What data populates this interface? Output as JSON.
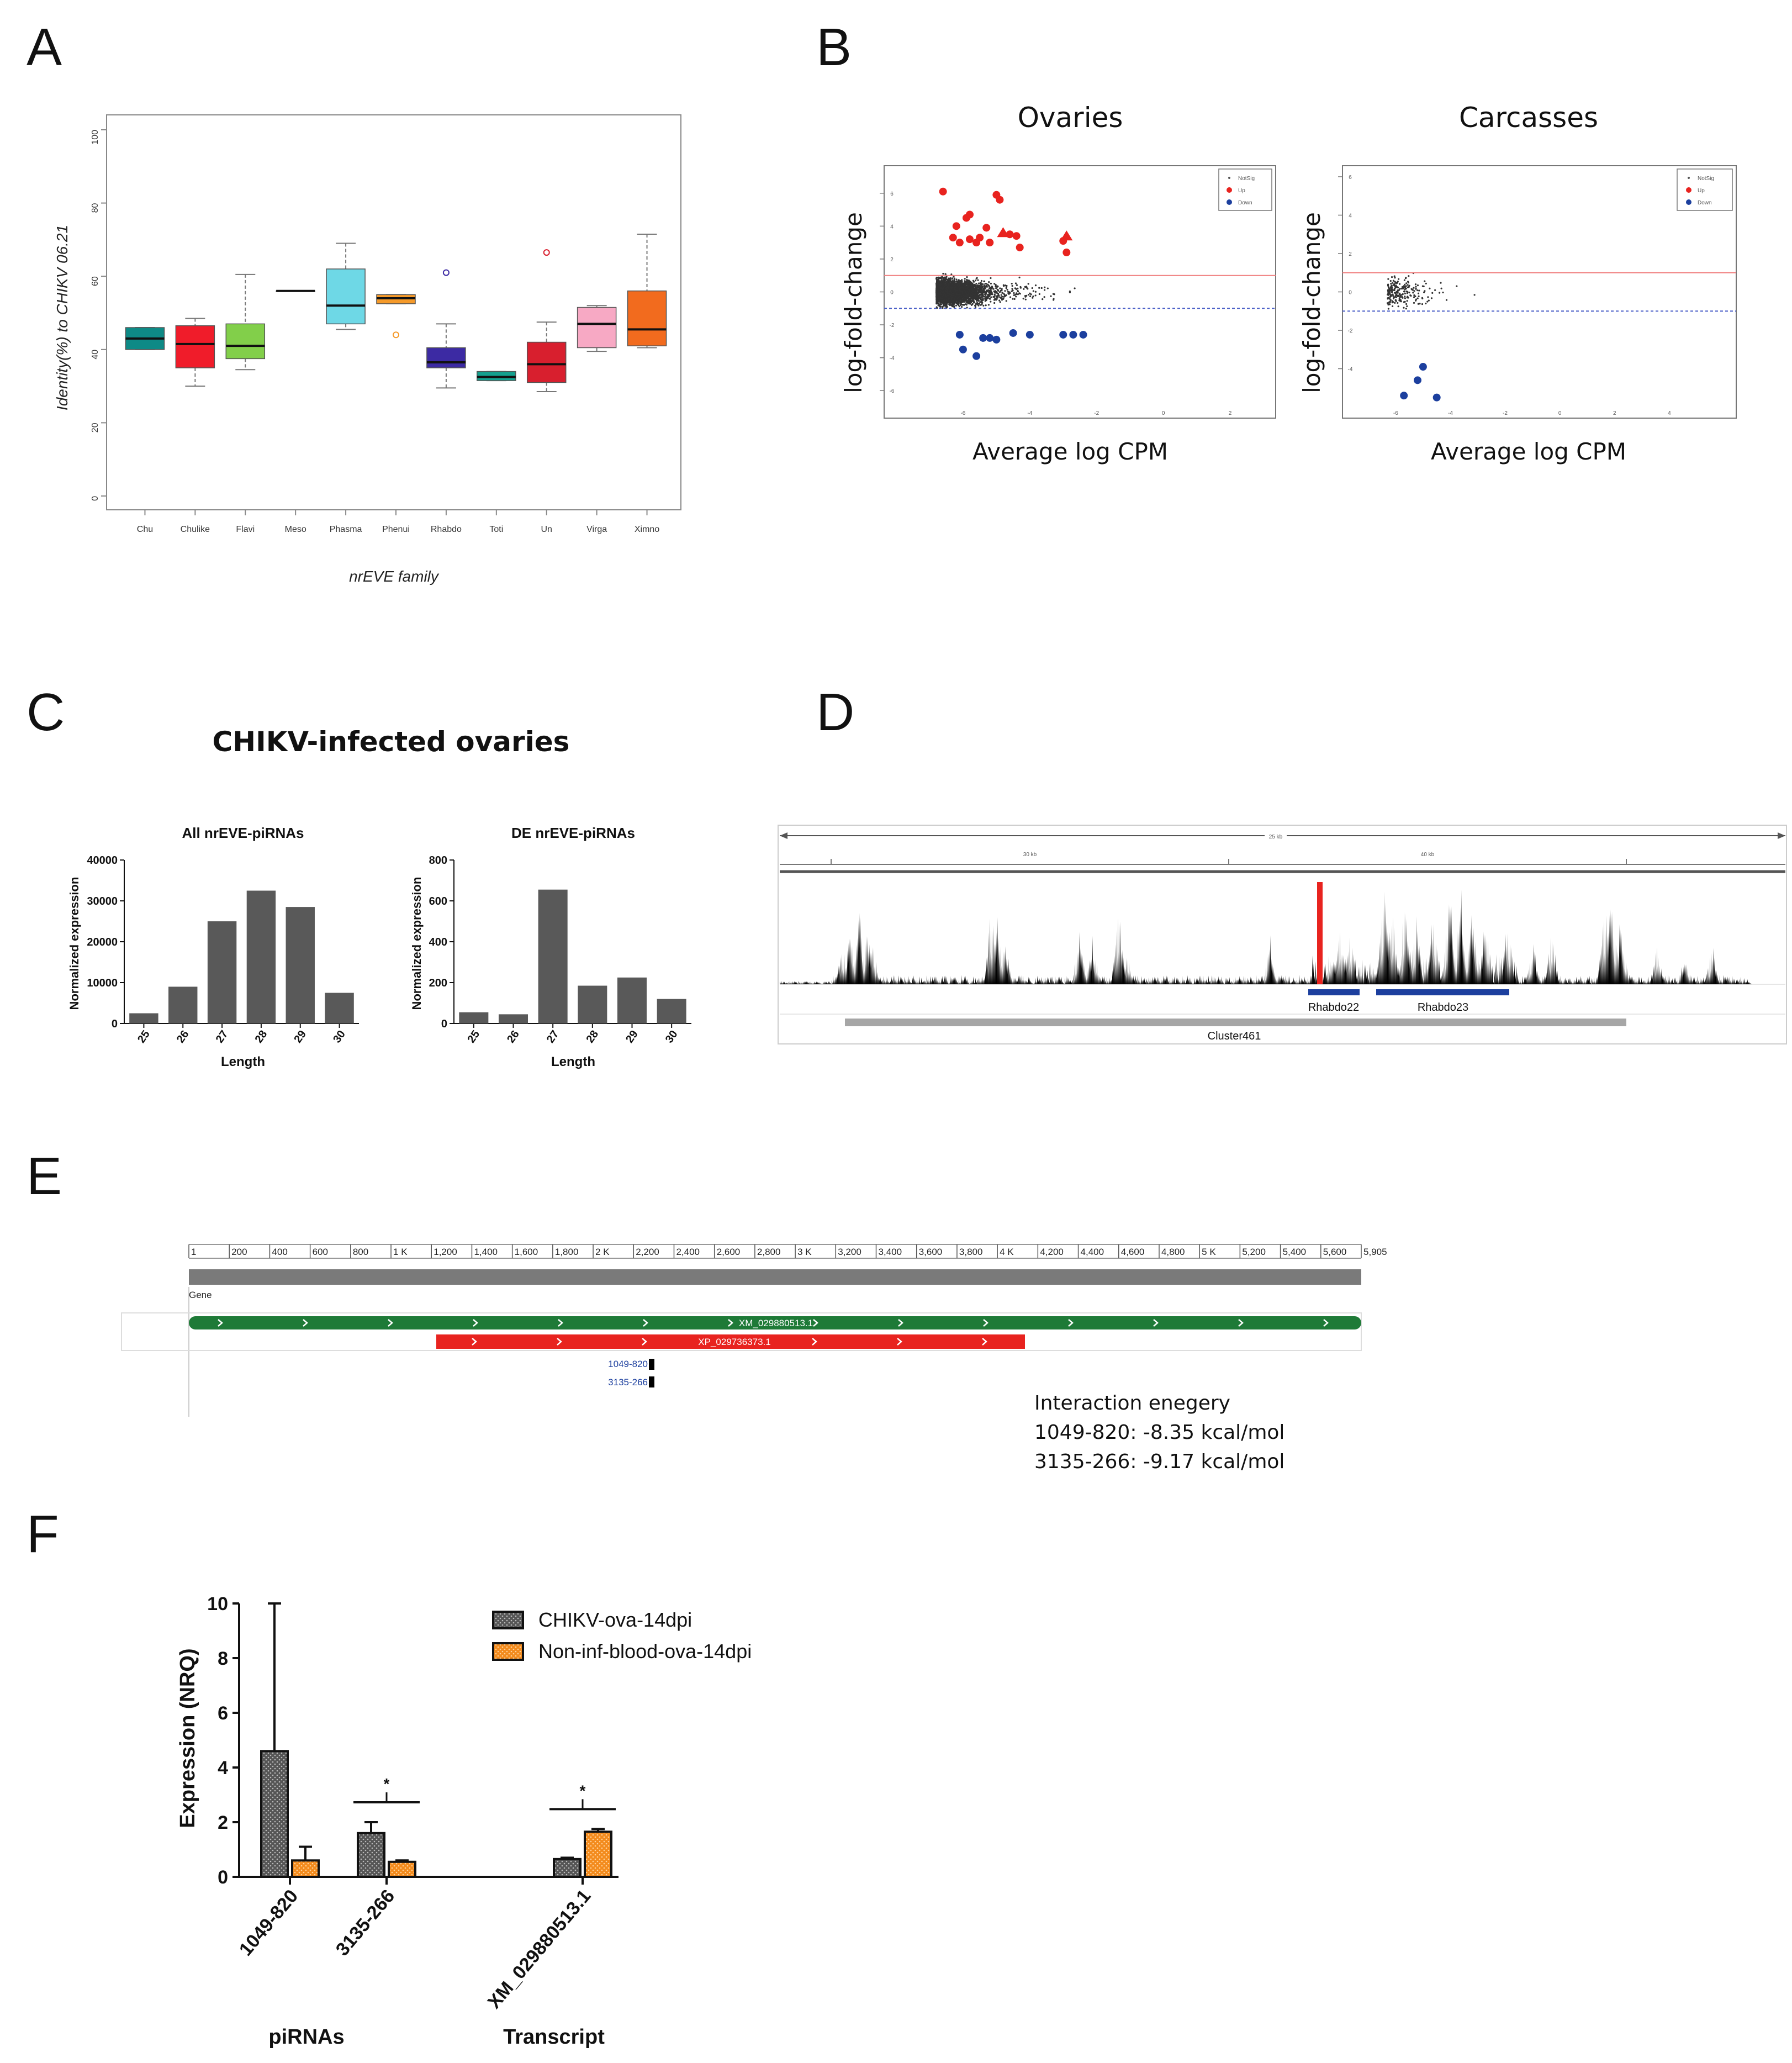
{
  "panel_labels": {
    "a": "A",
    "b": "B",
    "c": "C",
    "d": "D",
    "e": "E",
    "f": "F"
  },
  "colors": {
    "up": "#e8231f",
    "down": "#1c3f9e",
    "track_green": "#1e7a37",
    "track_red": "#e8231f",
    "bar_grey": "#555555",
    "orange": "#f38b1d"
  },
  "chart_data": [
    {
      "panel": "A",
      "type": "box",
      "ylabel": "Identity(%) to CHIKV 06.21",
      "xlabel": "nrEVE family",
      "ylim": [
        0,
        100
      ],
      "yticks": [
        "0",
        "20",
        "40",
        "60",
        "80",
        "100"
      ],
      "categories": [
        "Chu",
        "Chulike",
        "Flavi",
        "Meso",
        "Phasma",
        "Phenui",
        "Rhabdo",
        "Toti",
        "Un",
        "Virga",
        "Ximno"
      ],
      "colors": [
        "#0e8a86",
        "#f01c2a",
        "#82cf4a",
        "#ffffff",
        "#6ed8e6",
        "#f59a2a",
        "#3c2aa3",
        "#14a08e",
        "#d81f2e",
        "#f7a9c4",
        "#f26b1e"
      ],
      "boxes": [
        {
          "min": 40,
          "q1": 40,
          "median": 43,
          "q3": 46,
          "max": 46,
          "outliers": []
        },
        {
          "min": 30,
          "q1": 35,
          "median": 41.5,
          "q3": 46.5,
          "max": 48.5,
          "outliers": []
        },
        {
          "min": 34.5,
          "q1": 37.5,
          "median": 41,
          "q3": 47,
          "max": 60.5,
          "outliers": []
        },
        {
          "min": 56,
          "q1": 56,
          "median": 56,
          "q3": 56,
          "max": 56,
          "outliers": []
        },
        {
          "min": 45.5,
          "q1": 47,
          "median": 52,
          "q3": 62,
          "max": 69,
          "outliers": []
        },
        {
          "min": 52.5,
          "q1": 52.5,
          "median": 54,
          "q3": 55,
          "max": 55,
          "outliers": [
            44
          ]
        },
        {
          "min": 29.5,
          "q1": 35,
          "median": 36.5,
          "q3": 40.5,
          "max": 47,
          "outliers": [
            61
          ]
        },
        {
          "min": 31.5,
          "q1": 31.5,
          "median": 32.5,
          "q3": 34,
          "max": 34,
          "outliers": []
        },
        {
          "min": 28.5,
          "q1": 31,
          "median": 36,
          "q3": 42,
          "max": 47.5,
          "outliers": [
            66.5
          ]
        },
        {
          "min": 39.5,
          "q1": 40.5,
          "median": 47,
          "q3": 51.5,
          "max": 52,
          "outliers": []
        },
        {
          "min": 40.5,
          "q1": 41,
          "median": 45.5,
          "q3": 56,
          "max": 71.5,
          "outliers": []
        }
      ]
    },
    {
      "panel": "B-left",
      "type": "scatter",
      "title": "Ovaries",
      "xlabel": "Average log CPM",
      "ylabel": "log-fold-change",
      "xlim": [
        -8,
        3
      ],
      "ylim": [
        -7,
        7
      ],
      "xticks": [
        "-6",
        "-4",
        "-2",
        "0",
        "2"
      ],
      "yticks": [
        "-6",
        "-4",
        "-2",
        "0",
        "2",
        "4",
        "6"
      ],
      "thresholds": [
        1,
        -1
      ],
      "legend": [
        "NotSig",
        "Up",
        "Down"
      ],
      "up_points": [
        [
          -6.6,
          6.1
        ],
        [
          -6.2,
          4.0
        ],
        [
          -5.9,
          4.5
        ],
        [
          -5.8,
          4.7
        ],
        [
          -6.3,
          3.3
        ],
        [
          -6.1,
          3.0
        ],
        [
          -5.8,
          3.2
        ],
        [
          -5.5,
          3.3
        ],
        [
          -5.3,
          3.9
        ],
        [
          -5.0,
          5.9
        ],
        [
          -4.9,
          5.6
        ],
        [
          -4.6,
          3.5
        ],
        [
          -4.4,
          3.4
        ],
        [
          -4.3,
          2.7
        ],
        [
          -5.6,
          3.0
        ],
        [
          -5.2,
          3.0
        ],
        [
          -3.0,
          3.1
        ],
        [
          -2.9,
          2.4
        ]
      ],
      "down_points": [
        [
          -6.1,
          -2.6
        ],
        [
          -6.0,
          -3.5
        ],
        [
          -5.6,
          -3.9
        ],
        [
          -5.4,
          -2.8
        ],
        [
          -5.2,
          -2.8
        ],
        [
          -5.0,
          -2.9
        ],
        [
          -4.5,
          -2.5
        ],
        [
          -4.0,
          -2.6
        ],
        [
          -3.0,
          -2.6
        ],
        [
          -2.7,
          -2.6
        ],
        [
          -2.4,
          -2.6
        ]
      ],
      "up_triangles": [
        [
          -4.8,
          3.6
        ],
        [
          -2.9,
          3.4
        ]
      ]
    },
    {
      "panel": "B-right",
      "type": "scatter",
      "title": "Carcasses",
      "xlabel": "Average log CPM",
      "ylabel": "log-fold-change",
      "xlim": [
        -7.5,
        6
      ],
      "ylim": [
        -6,
        6
      ],
      "xticks": [
        "-6",
        "-4",
        "-2",
        "0",
        "2",
        "4"
      ],
      "yticks": [
        "-4",
        "-2",
        "0",
        "2",
        "4",
        "6"
      ],
      "thresholds": [
        1,
        -1
      ],
      "legend": [
        "NotSig",
        "Up",
        "Down"
      ],
      "up_points": [],
      "down_points": [
        [
          -5.7,
          -5.4
        ],
        [
          -5.2,
          -4.6
        ],
        [
          -5.0,
          -3.9
        ],
        [
          -4.5,
          -5.5
        ]
      ]
    },
    {
      "panel": "C-left",
      "type": "bar",
      "suptitle": "CHIKV-infected ovaries",
      "title": "All nrEVE-piRNAs",
      "xlabel": "Length",
      "ylabel": "Normalized expression",
      "categories": [
        "25",
        "26",
        "27",
        "28",
        "29",
        "30"
      ],
      "values": [
        2500,
        9000,
        25000,
        32500,
        28500,
        7500
      ],
      "ylim": [
        0,
        40000
      ],
      "yticks": [
        "0",
        "10000",
        "20000",
        "30000",
        "40000"
      ]
    },
    {
      "panel": "C-right",
      "type": "bar",
      "title": "DE nrEVE-piRNAs",
      "xlabel": "Length",
      "ylabel": "Normalized expression",
      "categories": [
        "25",
        "26",
        "27",
        "28",
        "29",
        "30"
      ],
      "values": [
        55,
        45,
        655,
        185,
        225,
        120
      ],
      "ylim": [
        0,
        800
      ],
      "yticks": [
        "0",
        "200",
        "400",
        "600",
        "800"
      ]
    },
    {
      "panel": "F",
      "type": "bar",
      "ylabel": "Expression (NRQ)",
      "ylim": [
        0,
        10
      ],
      "yticks": [
        "0",
        "2",
        "4",
        "6",
        "8",
        "10"
      ],
      "categories": [
        "1049-820",
        "3135-266",
        "XM_029880513.1"
      ],
      "groups": [
        "piRNAs",
        "Transcript"
      ],
      "series": [
        {
          "name": "CHIKV-ova-14dpi",
          "values": [
            4.6,
            1.6,
            0.65
          ],
          "errors": [
            5.4,
            0.4,
            0.05
          ]
        },
        {
          "name": "Non-inf-blood-ova-14dpi",
          "values": [
            0.6,
            0.55,
            1.65
          ],
          "errors": [
            0.5,
            0.05,
            0.1
          ]
        }
      ],
      "significance": [
        "",
        "*",
        "*"
      ]
    }
  ],
  "panel_d": {
    "scale_total": "25 kb",
    "scale_left": "30 kb",
    "scale_right": "40 kb",
    "features": [
      "Rhabdo22",
      "Rhabdo23",
      "Cluster461"
    ]
  },
  "panel_e": {
    "ticks": [
      "1",
      "200",
      "400",
      "600",
      "800",
      "1 K",
      "1,200",
      "1,400",
      "1,600",
      "1,800",
      "2 K",
      "2,200",
      "2,400",
      "2,600",
      "2,800",
      "3 K",
      "3,200",
      "3,400",
      "3,600",
      "3,800",
      "4 K",
      "4,200",
      "4,400",
      "4,600",
      "4,800",
      "5 K",
      "5,200",
      "5,400",
      "5,600",
      "5,905"
    ],
    "gene_label": "Gene",
    "transcript": "XM_029880513.1",
    "protein": "XP_029736373.1",
    "pirna1": "1049-820",
    "pirna2": "3135-266",
    "interaction_title": "Interaction enegery",
    "interaction_1": "1049-820: -8.35 kcal/mol",
    "interaction_2": "3135-266: -9.17 kcal/mol"
  }
}
